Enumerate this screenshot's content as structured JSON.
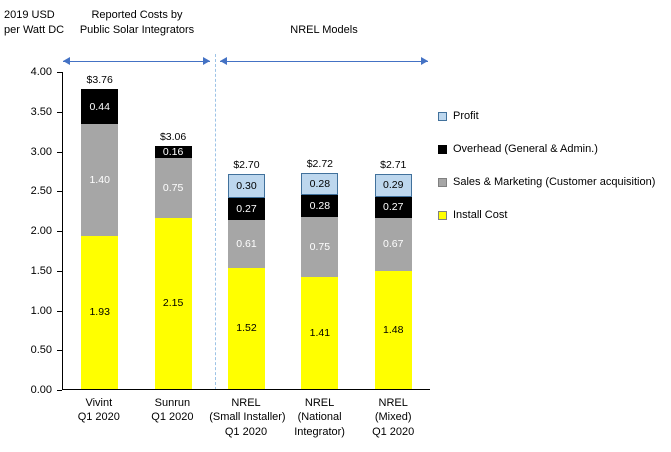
{
  "annotations": {
    "y_axis_title": "2019 USD\nper Watt DC",
    "group1_label": "Reported Costs by\nPublic Solar Integrators",
    "group2_label": "NREL Models"
  },
  "chart_data": {
    "type": "bar",
    "stacked": true,
    "ylabel": "2019 USD per Watt DC",
    "ylim": [
      0,
      4.0
    ],
    "y_ticks": [
      "4.00",
      "3.50",
      "3.00",
      "2.50",
      "2.00",
      "1.50",
      "1.00",
      "0.50",
      "0.00"
    ],
    "grid": false,
    "categories": [
      [
        "Vivint",
        "Q1 2020"
      ],
      [
        "Sunrun",
        "Q1 2020"
      ],
      [
        "NREL",
        "(Small Installer)",
        "Q1 2020"
      ],
      [
        "NREL",
        "(National",
        "Integrator)"
      ],
      [
        "NREL",
        "(Mixed)",
        "Q1 2020"
      ]
    ],
    "series": [
      {
        "key": "install-cost",
        "name": "Install Cost",
        "color": "#FFFF00",
        "label_color": "#000000",
        "values": [
          1.93,
          2.15,
          1.52,
          1.41,
          1.48
        ]
      },
      {
        "key": "sales-marketing",
        "name": "Sales & Marketing (Customer acquisition)",
        "color": "#A6A6A6",
        "label_color": "#FFFFFF",
        "values": [
          1.4,
          0.75,
          0.61,
          0.75,
          0.67
        ]
      },
      {
        "key": "overhead",
        "name": "Overhead (General & Admin.)",
        "color": "#000000",
        "label_color": "#FFFFFF",
        "values": [
          0.44,
          0.16,
          0.27,
          0.28,
          0.27
        ]
      },
      {
        "key": "profit",
        "name": "Profit",
        "color": "#BDD7EE",
        "label_color": "#000000",
        "border": "#41719C",
        "values": [
          null,
          null,
          0.3,
          0.28,
          0.29
        ]
      }
    ],
    "totals": [
      "$3.76",
      "$3.06",
      "$2.70",
      "$2.72",
      "$2.71"
    ],
    "group_annotations": [
      {
        "label": "Reported Costs by Public Solar Integrators",
        "categories": [
          "Vivint Q1 2020",
          "Sunrun Q1 2020"
        ]
      },
      {
        "label": "NREL Models",
        "categories": [
          "NREL (Small Installer) Q1 2020",
          "NREL (National Integrator)",
          "NREL (Mixed) Q1 2020"
        ]
      }
    ],
    "legend_position": "right"
  },
  "legend": {
    "items": [
      {
        "label": "Profit",
        "color": "#BDD7EE",
        "border": "#41719C"
      },
      {
        "label": "Overhead (General & Admin.)",
        "color": "#000000",
        "border": "#000000"
      },
      {
        "label": "Sales & Marketing (Customer acquisition)",
        "color": "#A6A6A6",
        "border": "#808080"
      },
      {
        "label": "Install Cost",
        "color": "#FFFF00",
        "border": "#808080"
      }
    ]
  }
}
